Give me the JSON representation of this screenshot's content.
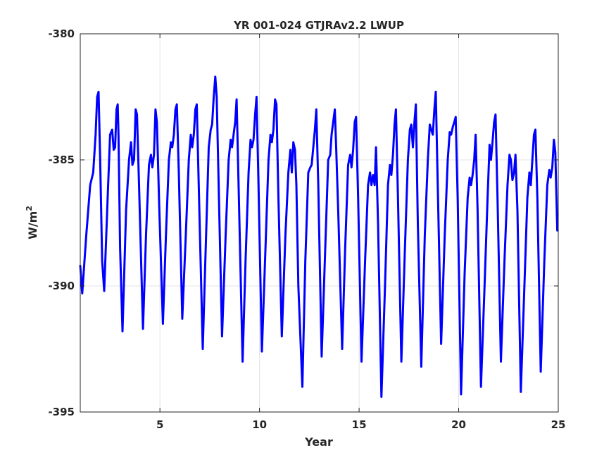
{
  "chart_data": {
    "type": "line",
    "title": "YR 001-024 GTJRAv2.2 LWUP",
    "xlabel": "Year",
    "ylabel": "W/m",
    "ylabel_superscript": "2",
    "xlim": [
      1,
      25
    ],
    "ylim": [
      -395,
      -380
    ],
    "xticks": [
      5,
      10,
      15,
      20,
      25
    ],
    "yticks": [
      -395,
      -390,
      -385,
      -380
    ],
    "grid": true,
    "line_color": "#0000ff",
    "series": [
      {
        "x": [
          1.0,
          1.1,
          1.3,
          1.5,
          1.65,
          1.77,
          1.85,
          1.92,
          2.0,
          2.1,
          2.2,
          2.4,
          2.5,
          2.6,
          2.68,
          2.75,
          2.82,
          2.88,
          2.92,
          3.0,
          3.12,
          3.3,
          3.45,
          3.55,
          3.62,
          3.7,
          3.78,
          3.85,
          3.95,
          4.15,
          4.3,
          4.45,
          4.55,
          4.62,
          4.7,
          4.78,
          4.85,
          4.95,
          5.15,
          5.3,
          5.45,
          5.55,
          5.62,
          5.7,
          5.78,
          5.85,
          5.95,
          6.12,
          6.3,
          6.45,
          6.55,
          6.62,
          6.7,
          6.78,
          6.85,
          6.95,
          7.15,
          7.3,
          7.45,
          7.55,
          7.62,
          7.7,
          7.78,
          7.85,
          7.95,
          8.12,
          8.3,
          8.45,
          8.55,
          8.62,
          8.7,
          8.78,
          8.85,
          8.95,
          9.15,
          9.3,
          9.45,
          9.55,
          9.62,
          9.7,
          9.78,
          9.85,
          9.95,
          10.12,
          10.3,
          10.45,
          10.55,
          10.62,
          10.7,
          10.78,
          10.85,
          10.95,
          11.12,
          11.3,
          11.45,
          11.55,
          11.62,
          11.7,
          11.78,
          11.85,
          11.95,
          12.15,
          12.3,
          12.45,
          12.55,
          12.62,
          12.7,
          12.78,
          12.85,
          12.95,
          13.12,
          13.3,
          13.45,
          13.55,
          13.62,
          13.7,
          13.78,
          13.85,
          13.95,
          14.15,
          14.3,
          14.45,
          14.55,
          14.62,
          14.7,
          14.78,
          14.85,
          14.95,
          15.12,
          15.3,
          15.45,
          15.55,
          15.62,
          15.7,
          15.78,
          15.85,
          15.95,
          16.12,
          16.3,
          16.45,
          16.55,
          16.62,
          16.7,
          16.78,
          16.85,
          16.95,
          17.12,
          17.3,
          17.45,
          17.55,
          17.62,
          17.7,
          17.78,
          17.85,
          17.95,
          18.12,
          18.3,
          18.45,
          18.55,
          18.62,
          18.7,
          18.78,
          18.85,
          18.95,
          19.12,
          19.3,
          19.45,
          19.55,
          19.62,
          19.7,
          19.78,
          19.85,
          19.95,
          20.12,
          20.3,
          20.45,
          20.55,
          20.62,
          20.7,
          20.78,
          20.85,
          20.95,
          21.12,
          21.3,
          21.45,
          21.55,
          21.62,
          21.7,
          21.78,
          21.85,
          21.95,
          22.12,
          22.3,
          22.45,
          22.55,
          22.62,
          22.7,
          22.78,
          22.85,
          22.95,
          23.12,
          23.3,
          23.45,
          23.55,
          23.62,
          23.7,
          23.78,
          23.85,
          23.95,
          24.12,
          24.3,
          24.45,
          24.55,
          24.62,
          24.7,
          24.78,
          24.85,
          24.95
        ],
        "y": [
          -389.2,
          -390.3,
          -388.0,
          -386.0,
          -385.5,
          -384.0,
          -382.5,
          -382.3,
          -385.0,
          -389.0,
          -390.2,
          -386.0,
          -384.0,
          -383.8,
          -384.6,
          -384.5,
          -383.0,
          -382.8,
          -384.0,
          -388.5,
          -391.8,
          -387.0,
          -385.0,
          -384.3,
          -385.2,
          -385.0,
          -383.0,
          -383.2,
          -386.0,
          -391.7,
          -388.0,
          -385.2,
          -384.8,
          -385.3,
          -384.8,
          -383.0,
          -383.5,
          -386.5,
          -391.5,
          -388.0,
          -385.0,
          -384.3,
          -384.5,
          -384.0,
          -383.0,
          -382.8,
          -385.5,
          -391.3,
          -388.0,
          -385.0,
          -384.0,
          -384.5,
          -384.0,
          -383.0,
          -382.8,
          -386.0,
          -392.5,
          -388.5,
          -384.5,
          -383.8,
          -383.6,
          -382.5,
          -381.7,
          -382.5,
          -386.0,
          -392.0,
          -388.0,
          -385.0,
          -384.2,
          -384.5,
          -384.0,
          -383.5,
          -382.6,
          -386.0,
          -393.0,
          -389.0,
          -385.5,
          -384.2,
          -384.5,
          -384.2,
          -383.2,
          -382.5,
          -386.0,
          -392.6,
          -388.5,
          -385.0,
          -384.0,
          -384.3,
          -383.8,
          -382.6,
          -382.8,
          -386.5,
          -392.0,
          -388.0,
          -385.5,
          -384.6,
          -385.5,
          -384.3,
          -384.6,
          -386.0,
          -390.0,
          -394.0,
          -389.0,
          -385.5,
          -385.3,
          -385.2,
          -384.5,
          -383.8,
          -383.0,
          -386.0,
          -392.8,
          -388.5,
          -385.0,
          -384.8,
          -384.0,
          -383.5,
          -383.0,
          -384.5,
          -387.0,
          -392.5,
          -388.5,
          -385.2,
          -384.8,
          -385.3,
          -384.6,
          -383.5,
          -383.3,
          -386.5,
          -393.0,
          -389.0,
          -386.0,
          -385.5,
          -386.0,
          -385.6,
          -386.0,
          -384.5,
          -387.5,
          -394.4,
          -390.0,
          -386.0,
          -385.2,
          -385.6,
          -384.8,
          -383.6,
          -383.0,
          -386.5,
          -393.0,
          -388.5,
          -385.0,
          -383.8,
          -383.6,
          -384.5,
          -383.5,
          -382.8,
          -387.5,
          -393.2,
          -388.0,
          -385.0,
          -383.6,
          -383.8,
          -384.0,
          -383.0,
          -382.3,
          -386.0,
          -392.3,
          -388.0,
          -385.0,
          -383.9,
          -384.0,
          -383.7,
          -383.5,
          -383.3,
          -386.5,
          -394.3,
          -389.5,
          -386.5,
          -385.7,
          -386.0,
          -385.6,
          -385.0,
          -384.0,
          -387.0,
          -394.0,
          -390.0,
          -386.5,
          -384.4,
          -385.0,
          -384.3,
          -383.5,
          -383.2,
          -386.5,
          -393.0,
          -389.0,
          -386.0,
          -384.8,
          -385.0,
          -385.8,
          -385.5,
          -384.8,
          -387.0,
          -394.2,
          -390.0,
          -386.5,
          -385.5,
          -386.0,
          -385.0,
          -384.0,
          -383.8,
          -386.5,
          -393.4,
          -389.0,
          -386.0,
          -385.4,
          -385.7,
          -385.3,
          -384.2,
          -384.7,
          -387.8
        ]
      }
    ]
  }
}
